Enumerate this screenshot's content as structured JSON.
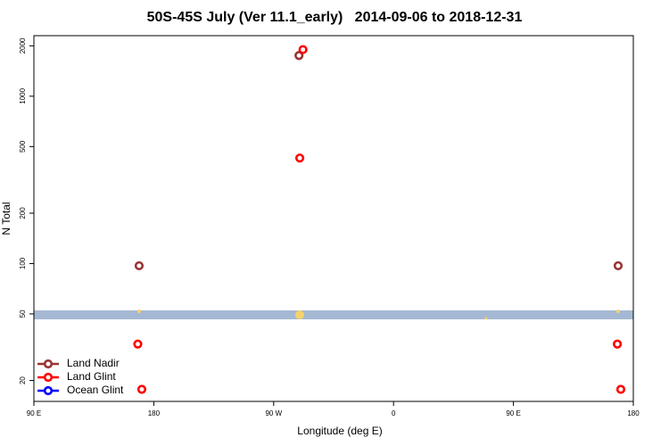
{
  "chart_data": {
    "type": "scatter",
    "title": "50S-45S July (Ver 11.1_early)   2014-09-06 to 2018-12-31",
    "x_label": "Longitude (deg E)",
    "y_label": "N Total",
    "xlim": [
      90,
      540
    ],
    "xticks": [
      {
        "value": 90,
        "label": "90 E"
      },
      180,
      {
        "value": 270,
        "label": "90 W"
      },
      {
        "value": 360,
        "label": "0"
      },
      {
        "value": 450,
        "label": "90 E"
      },
      {
        "value": 540,
        "label": "180"
      }
    ],
    "ylim": [
      15,
      2300
    ],
    "yticks": [
      20,
      50,
      100,
      200,
      500,
      1000,
      2000
    ],
    "log_y": true,
    "legend": "lower left",
    "series": [
      {
        "name": "Land Nadir",
        "color": "#993333",
        "x": [
          169,
          289,
          528.6
        ],
        "values": [
          97,
          1750,
          97
        ]
      },
      {
        "name": "Land Glint",
        "color": "#ff0000",
        "x": [
          292,
          289.6,
          168,
          171,
          528,
          530.6
        ],
        "values": [
          1900,
          427,
          33,
          17.7,
          33,
          17.7
        ]
      },
      {
        "name": "Ocean Glint",
        "color": "#0000ff",
        "x": [],
        "values": []
      }
    ]
  }
}
